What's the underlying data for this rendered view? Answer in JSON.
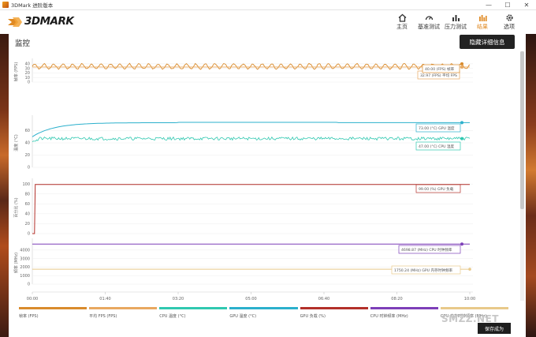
{
  "window": {
    "title": "3DMark 进阶版本",
    "minimize": "—",
    "maximize": "☐",
    "close": "✕"
  },
  "brand": {
    "name": "3DMARK"
  },
  "nav": [
    {
      "label": "主页",
      "icon": "home-icon",
      "active": false
    },
    {
      "label": "基准测试",
      "icon": "gauge-icon",
      "active": false
    },
    {
      "label": "压力测试",
      "icon": "bars-icon",
      "active": false
    },
    {
      "label": "结果",
      "icon": "results-icon",
      "active": true
    },
    {
      "label": "选项",
      "icon": "gear-icon",
      "active": false
    }
  ],
  "panel": {
    "title": "监控",
    "hide_details": "隐藏详细信息",
    "save": "保存成为"
  },
  "colors": {
    "accent": "#e08a24",
    "fps": "#d98b2c",
    "avg_fps": "#e8a860",
    "cpu_temp": "#30c8b0",
    "gpu_temp": "#2bb0cc",
    "gpu_load": "#b3302a",
    "cpu_clock": "#7d3fb8",
    "gpu_mem_clock": "#e8c98a"
  },
  "chart_data": {
    "type": "line",
    "x_ticks": [
      "00:00",
      "01:40",
      "03:20",
      "05:00",
      "06:40",
      "08:20",
      "10:00"
    ],
    "x_range_seconds": [
      0,
      600
    ],
    "panels": [
      {
        "ylabel": "帧率 (FPS)",
        "yticks": [
          "40",
          "30",
          "20",
          "10",
          "0"
        ],
        "ylim": [
          0,
          45
        ],
        "series": [
          {
            "name": "帧率 (FPS)",
            "base": 34.5,
            "amp": 5.5,
            "period_s": 13
          },
          {
            "name": "平均 FPS (FPS)",
            "value": 32.97
          }
        ],
        "badges": [
          "32.97 (FPS) 平均 FPS",
          "40.00 (FPS) 帧率"
        ]
      },
      {
        "ylabel": "温度 (°C)",
        "yticks": [
          "60",
          "40",
          "20",
          "0"
        ],
        "ylim": [
          0,
          80
        ],
        "series": [
          {
            "name": "GPU 温度 (°C)",
            "start": 50,
            "end": 73
          },
          {
            "name": "CPU 温度 (°C)",
            "base": 47,
            "amp": 2.5
          }
        ],
        "badges": [
          "73.00 (°C) GPU 温度",
          "47.00 (°C) CPU 温度"
        ]
      },
      {
        "ylabel": "百分比 (%)",
        "yticks": [
          "100",
          "80",
          "60",
          "40",
          "20",
          "0"
        ],
        "ylim": [
          0,
          105
        ],
        "series": [
          {
            "name": "GPU 负载 (%)",
            "value": 99
          }
        ],
        "badges": [
          "99.00 (%) GPU 负载"
        ]
      },
      {
        "ylabel": "频率 (MHz)",
        "yticks": [
          "4000",
          "3000",
          "2000",
          "1000",
          "0"
        ],
        "ylim": [
          0,
          5000
        ],
        "series": [
          {
            "name": "CPU 时钟频率 (MHz)",
            "value": 4698.87
          },
          {
            "name": "GPU 内存时钟频率 (MHz)",
            "value": 1750.24
          }
        ],
        "badges": [
          "4698.87 (MHz) CPU 时钟频率",
          "1750.24 (MHz) GPU 内存时钟频率"
        ]
      }
    ]
  },
  "legend": [
    {
      "label": "帧率 (FPS)",
      "color": "#d98b2c"
    },
    {
      "label": "平均 FPS (FPS)",
      "color": "#e8a860"
    },
    {
      "label": "CPU 温度 (°C)",
      "color": "#30c8b0"
    },
    {
      "label": "GPU 温度 (°C)",
      "color": "#2bb0cc"
    },
    {
      "label": "GPU 负载 (%)",
      "color": "#b3302a"
    },
    {
      "label": "CPU 时钟频率 (MHz)",
      "color": "#7d3fb8"
    },
    {
      "label": "GPU 内存时钟频率 (MHz)",
      "color": "#e8c98a"
    }
  ],
  "watermark": "SMZZ.NET"
}
